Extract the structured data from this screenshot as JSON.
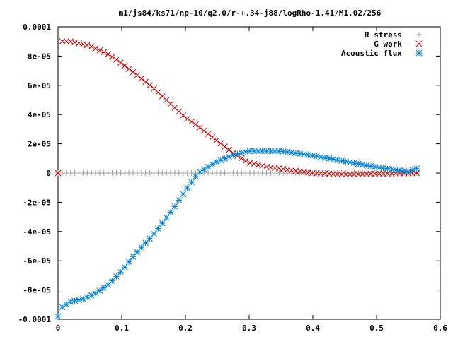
{
  "chart_data": {
    "type": "scatter",
    "title": "m1/js84/ks71/np-10/q2.0/r-+.34-j88/logRho-1.41/M1.02/256",
    "xlabel": "",
    "ylabel": "",
    "xlim": [
      0,
      0.6
    ],
    "ylim": [
      -0.0001,
      0.0001
    ],
    "xticks": [
      0,
      0.1,
      0.2,
      0.3,
      0.4,
      0.5,
      0.6
    ],
    "xtick_labels": [
      "0",
      "0.1",
      "0.2",
      "0.3",
      "0.4",
      "0.5",
      "0.6"
    ],
    "yticks": [
      -0.0001,
      -8e-05,
      -6e-05,
      -4e-05,
      -2e-05,
      0,
      2e-05,
      4e-05,
      6e-05,
      8e-05,
      0.0001
    ],
    "ytick_labels": [
      "-0.0001",
      "-8e-05",
      "-6e-05",
      "-4e-05",
      "-2e-05",
      "0",
      "2e-05",
      "4e-05",
      "6e-05",
      "8e-05",
      "0.0001"
    ],
    "grid": false,
    "legend_position": "top-right",
    "x_range": [
      0,
      0.563
    ],
    "n_points": 87,
    "series": [
      {
        "name": "R stress",
        "marker": "plus",
        "color": "#a0a0a0",
        "knots": [
          [
            0,
            0.0
          ],
          [
            0.563,
            0.0
          ]
        ]
      },
      {
        "name": "G work",
        "marker": "cross",
        "color": "#cc0000",
        "knots": [
          [
            0,
            0.0
          ],
          [
            0.005,
            9e-05
          ],
          [
            0.02,
            9e-05
          ],
          [
            0.05,
            8.7e-05
          ],
          [
            0.08,
            8.1e-05
          ],
          [
            0.1,
            7.5e-05
          ],
          [
            0.13,
            6.5e-05
          ],
          [
            0.15,
            5.8e-05
          ],
          [
            0.18,
            4.6e-05
          ],
          [
            0.2,
            3.8e-05
          ],
          [
            0.22,
            3.2e-05
          ],
          [
            0.25,
            2.2e-05
          ],
          [
            0.28,
            1.2e-05
          ],
          [
            0.3,
            7e-06
          ],
          [
            0.33,
            4e-06
          ],
          [
            0.35,
            3e-06
          ],
          [
            0.38,
            1e-06
          ],
          [
            0.4,
            0.0
          ],
          [
            0.45,
            -1e-06
          ],
          [
            0.5,
            -5e-07
          ],
          [
            0.563,
            0.0
          ]
        ]
      },
      {
        "name": "Acoustic flux",
        "marker": "asterisk",
        "color": "#0080d0",
        "knots": [
          [
            0,
            -9.8e-05
          ],
          [
            0.005,
            -9.2e-05
          ],
          [
            0.02,
            -8.8e-05
          ],
          [
            0.04,
            -8.6e-05
          ],
          [
            0.06,
            -8.2e-05
          ],
          [
            0.08,
            -7.6e-05
          ],
          [
            0.1,
            -6.7e-05
          ],
          [
            0.12,
            -5.6e-05
          ],
          [
            0.15,
            -4.2e-05
          ],
          [
            0.18,
            -2.5e-05
          ],
          [
            0.2,
            -1.2e-05
          ],
          [
            0.22,
            0.0
          ],
          [
            0.25,
            8e-06
          ],
          [
            0.28,
            1.3e-05
          ],
          [
            0.3,
            1.5e-05
          ],
          [
            0.32,
            1.5e-05
          ],
          [
            0.35,
            1.5e-05
          ],
          [
            0.4,
            1.2e-05
          ],
          [
            0.45,
            8e-06
          ],
          [
            0.5,
            4e-06
          ],
          [
            0.55,
            1e-06
          ],
          [
            0.563,
            3e-06
          ]
        ]
      }
    ]
  }
}
